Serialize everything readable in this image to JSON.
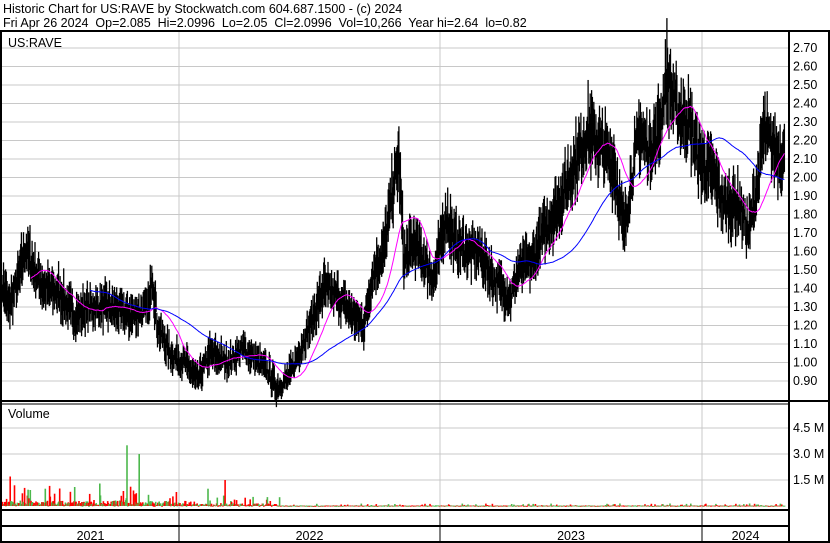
{
  "header": {
    "line1": "Historic Chart for US:RAVE by Stockwatch.com 604.687.1500 - (c) 2024",
    "line2": "Fri Apr 26 2024  Op=2.085  Hi=2.0996  Lo=2.05  Cl=2.0996  Vol=10,266  Year hi=2.64  lo=0.82"
  },
  "colors": {
    "price_bars": "#000000",
    "ma_short": "#ff00ff",
    "ma_long": "#0000ff",
    "vol_up": "#4cb84c",
    "vol_down": "#ff0000",
    "vol_flat": "#a8a8a8",
    "grid": "#c8c8c8"
  },
  "chart_data": [
    {
      "type": "line",
      "title": "US:RAVE",
      "price_ticks": [
        "2.70",
        "2.60",
        "2.50",
        "2.40",
        "2.30",
        "2.20",
        "2.10",
        "2.00",
        "1.90",
        "1.80",
        "1.70",
        "1.60",
        "1.50",
        "1.40",
        "1.30",
        "1.20",
        "1.10",
        "1.00",
        "0.90"
      ],
      "ylim": [
        0.82,
        2.75
      ],
      "grid": true,
      "series": [
        {
          "points": [
            [
              "2021-04-27",
              1.45
            ],
            [
              "2021-05-08",
              1.3
            ],
            [
              "2021-05-22",
              1.45
            ],
            [
              "2021-06-01",
              1.62
            ],
            [
              "2021-06-13",
              1.5
            ],
            [
              "2021-06-27",
              1.4
            ],
            [
              "2021-07-17",
              1.38
            ],
            [
              "2021-08-08",
              1.25
            ],
            [
              "2021-08-29",
              1.3
            ],
            [
              "2021-09-26",
              1.3
            ],
            [
              "2021-10-24",
              1.25
            ],
            [
              "2021-11-21",
              1.3
            ],
            [
              "2021-11-24",
              1.5
            ],
            [
              "2021-12-02",
              1.2
            ],
            [
              "2021-12-19",
              1.05
            ],
            [
              "2022-01-09",
              1.0
            ],
            [
              "2022-01-27",
              0.9
            ],
            [
              "2022-02-13",
              1.05
            ],
            [
              "2022-03-11",
              1.0
            ],
            [
              "2022-04-01",
              1.08
            ],
            [
              "2022-04-22",
              1.0
            ],
            [
              "2022-05-06",
              0.95
            ],
            [
              "2022-05-17",
              0.86
            ],
            [
              "2022-06-03",
              0.92
            ],
            [
              "2022-06-17",
              1.05
            ],
            [
              "2022-07-08",
              1.25
            ],
            [
              "2022-07-22",
              1.4
            ],
            [
              "2022-08-12",
              1.35
            ],
            [
              "2022-09-02",
              1.25
            ],
            [
              "2022-09-16",
              1.2
            ],
            [
              "2022-09-30",
              1.5
            ],
            [
              "2022-10-14",
              1.6
            ],
            [
              "2022-10-25",
              1.9
            ],
            [
              "2022-11-04",
              2.1
            ],
            [
              "2022-11-11",
              1.55
            ],
            [
              "2022-11-25",
              1.65
            ],
            [
              "2022-12-09",
              1.55
            ],
            [
              "2022-12-23",
              1.45
            ],
            [
              "2023-01-09",
              1.8
            ],
            [
              "2023-01-20",
              1.65
            ],
            [
              "2023-02-10",
              1.6
            ],
            [
              "2023-02-24",
              1.6
            ],
            [
              "2023-03-16",
              1.45
            ],
            [
              "2023-04-09",
              1.35
            ],
            [
              "2023-04-20",
              1.5
            ],
            [
              "2023-05-10",
              1.55
            ],
            [
              "2023-05-24",
              1.7
            ],
            [
              "2023-06-15",
              1.85
            ],
            [
              "2023-07-05",
              2.05
            ],
            [
              "2023-07-26",
              2.25
            ],
            [
              "2023-08-16",
              2.15
            ],
            [
              "2023-09-01",
              2.05
            ],
            [
              "2023-09-14",
              1.7
            ],
            [
              "2023-09-21",
              1.9
            ],
            [
              "2023-10-05",
              2.25
            ],
            [
              "2023-10-19",
              2.15
            ],
            [
              "2023-11-02",
              2.25
            ],
            [
              "2023-11-13",
              2.55
            ],
            [
              "2023-11-27",
              2.35
            ],
            [
              "2023-12-14",
              2.3
            ],
            [
              "2023-12-28",
              2.1
            ],
            [
              "2024-01-18",
              2.0
            ],
            [
              "2024-02-01",
              1.85
            ],
            [
              "2024-02-22",
              1.85
            ],
            [
              "2024-03-06",
              1.7
            ],
            [
              "2024-03-20",
              2.0
            ],
            [
              "2024-03-27",
              2.25
            ],
            [
              "2024-04-10",
              2.15
            ],
            [
              "2024-04-26",
              2.0996
            ]
          ]
        }
      ]
    },
    {
      "type": "bar",
      "title": "Volume",
      "vol_ticks": [
        "4.5 M",
        "3.0 M",
        "1.5 M"
      ],
      "ylim": [
        0,
        6000000
      ],
      "peaks": [
        [
          "2021-05-10",
          1700000
        ],
        [
          "2021-06-28",
          1000000
        ],
        [
          "2021-09-12",
          1300000
        ],
        [
          "2021-10-20",
          3500000
        ],
        [
          "2021-11-06",
          3000000
        ],
        [
          "2022-03-06",
          1500000
        ],
        [
          "2022-02-10",
          1000000
        ]
      ]
    }
  ],
  "years": [
    "2021",
    "2022",
    "2023",
    "2024"
  ]
}
